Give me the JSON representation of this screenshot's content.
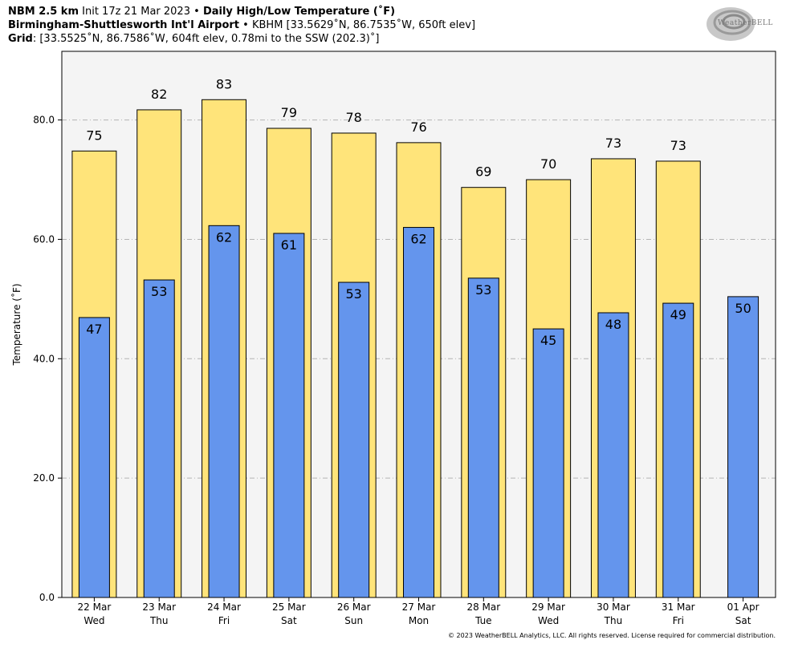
{
  "header": {
    "model": "NBM 2.5 km",
    "init": "Init 17z 21 Mar 2023",
    "bullet": "•",
    "title": "Daily High/Low Temperature (˚F)",
    "station_name": "Birmingham-Shuttlesworth Int'l Airport",
    "station_info": "KBHM [33.5629˚N, 86.7535˚W, 650ft elev]",
    "grid_label": "Grid",
    "grid_info": ": [33.5525˚N, 86.7586˚W, 604ft elev, 0.78mi to the SSW (202.3)˚]"
  },
  "logo": {
    "text": "WeatherBELL",
    "icon": "swirl-logo-icon"
  },
  "footer": "© 2023 WeatherBELL Analytics, LLC. All rights reserved. License required for commercial distribution.",
  "colors": {
    "high": "#FFE47A",
    "low": "#6495ED",
    "plot_bg": "#F4F4F4",
    "grid": "#B4B4B4"
  },
  "chart_data": {
    "type": "bar",
    "title": "Daily High/Low Temperature (˚F)",
    "ylabel": "Temperature (˚F)",
    "xlabel": "",
    "ylim": [
      0,
      91.5
    ],
    "yticks": [
      "0.0",
      "20.0",
      "40.0",
      "60.0",
      "80.0"
    ],
    "ytick_values": [
      0,
      20,
      40,
      60,
      80
    ],
    "grid": true,
    "categories": [
      {
        "date": "22 Mar",
        "day": "Wed"
      },
      {
        "date": "23 Mar",
        "day": "Thu"
      },
      {
        "date": "24 Mar",
        "day": "Fri"
      },
      {
        "date": "25 Mar",
        "day": "Sat"
      },
      {
        "date": "26 Mar",
        "day": "Sun"
      },
      {
        "date": "27 Mar",
        "day": "Mon"
      },
      {
        "date": "28 Mar",
        "day": "Tue"
      },
      {
        "date": "29 Mar",
        "day": "Wed"
      },
      {
        "date": "30 Mar",
        "day": "Thu"
      },
      {
        "date": "31 Mar",
        "day": "Fri"
      },
      {
        "date": "01 Apr",
        "day": "Sat"
      }
    ],
    "series": [
      {
        "key": "high",
        "values": [
          74.8,
          81.7,
          83.4,
          78.6,
          77.8,
          76.2,
          68.7,
          70.0,
          73.5,
          73.1,
          null
        ],
        "labels": [
          "75",
          "82",
          "83",
          "79",
          "78",
          "76",
          "69",
          "70",
          "73",
          "73",
          ""
        ]
      },
      {
        "key": "low",
        "values": [
          46.9,
          53.2,
          62.3,
          61.0,
          52.8,
          62.0,
          53.5,
          45.0,
          47.7,
          49.3,
          50.4
        ],
        "labels": [
          "47",
          "53",
          "62",
          "61",
          "53",
          "62",
          "53",
          "45",
          "48",
          "49",
          "50"
        ]
      }
    ]
  }
}
